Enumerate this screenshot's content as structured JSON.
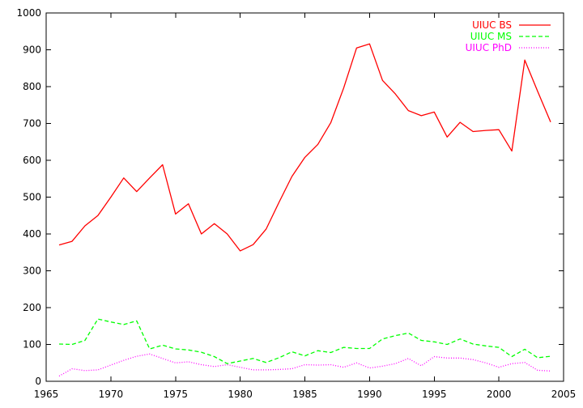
{
  "chart_data": {
    "type": "line",
    "title": "",
    "xlabel": "",
    "ylabel": "",
    "xlim": [
      1965,
      2005
    ],
    "ylim": [
      0,
      1000
    ],
    "xticks": [
      1965,
      1970,
      1975,
      1980,
      1985,
      1990,
      1995,
      2000,
      2005
    ],
    "yticks": [
      0,
      100,
      200,
      300,
      400,
      500,
      600,
      700,
      800,
      900,
      1000
    ],
    "grid": false,
    "legend_position": "top-right",
    "series": [
      {
        "name": "UIUC BS",
        "color": "#ff0000",
        "dash": "solid",
        "x": [
          1966,
          1967,
          1968,
          1969,
          1970,
          1971,
          1972,
          1973,
          1974,
          1975,
          1976,
          1977,
          1978,
          1979,
          1980,
          1981,
          1982,
          1983,
          1984,
          1985,
          1986,
          1987,
          1988,
          1989,
          1990,
          1991,
          1992,
          1993,
          1994,
          1995,
          1996,
          1997,
          1998,
          1999,
          2000,
          2001,
          2002,
          2003,
          2004
        ],
        "values": [
          370,
          380,
          422,
          450,
          500,
          552,
          515,
          552,
          588,
          454,
          482,
          400,
          428,
          400,
          354,
          371,
          413,
          486,
          556,
          608,
          643,
          702,
          796,
          905,
          916,
          817,
          780,
          735,
          721,
          731,
          663,
          703,
          678,
          681,
          683,
          625,
          872,
          787,
          704
        ]
      },
      {
        "name": "UIUC MS",
        "color": "#00ff00",
        "dash": "dashed",
        "x": [
          1966,
          1967,
          1968,
          1969,
          1970,
          1971,
          1972,
          1973,
          1974,
          1975,
          1976,
          1977,
          1978,
          1979,
          1980,
          1981,
          1982,
          1983,
          1984,
          1985,
          1986,
          1987,
          1988,
          1989,
          1990,
          1991,
          1992,
          1993,
          1994,
          1995,
          1996,
          1997,
          1998,
          1999,
          2000,
          2001,
          2002,
          2003,
          2004
        ],
        "values": [
          101,
          100,
          111,
          169,
          161,
          154,
          164,
          88,
          98,
          88,
          85,
          79,
          67,
          48,
          55,
          62,
          51,
          64,
          80,
          69,
          83,
          78,
          92,
          89,
          89,
          115,
          124,
          131,
          111,
          107,
          100,
          115,
          101,
          96,
          92,
          67,
          87,
          64,
          68
        ]
      },
      {
        "name": "UIUC PhD",
        "color": "#ff00ff",
        "dash": "dotted",
        "x": [
          1966,
          1967,
          1968,
          1969,
          1970,
          1971,
          1972,
          1973,
          1974,
          1975,
          1976,
          1977,
          1978,
          1979,
          1980,
          1981,
          1982,
          1983,
          1984,
          1985,
          1986,
          1987,
          1988,
          1989,
          1990,
          1991,
          1992,
          1993,
          1994,
          1995,
          1996,
          1997,
          1998,
          1999,
          2000,
          2001,
          2002,
          2003,
          2004
        ],
        "values": [
          14,
          34,
          29,
          31,
          44,
          57,
          68,
          74,
          62,
          50,
          53,
          45,
          40,
          45,
          38,
          31,
          31,
          32,
          34,
          45,
          44,
          45,
          38,
          50,
          36,
          41,
          48,
          62,
          42,
          67,
          63,
          63,
          59,
          50,
          38,
          48,
          51,
          30,
          28
        ]
      }
    ]
  }
}
